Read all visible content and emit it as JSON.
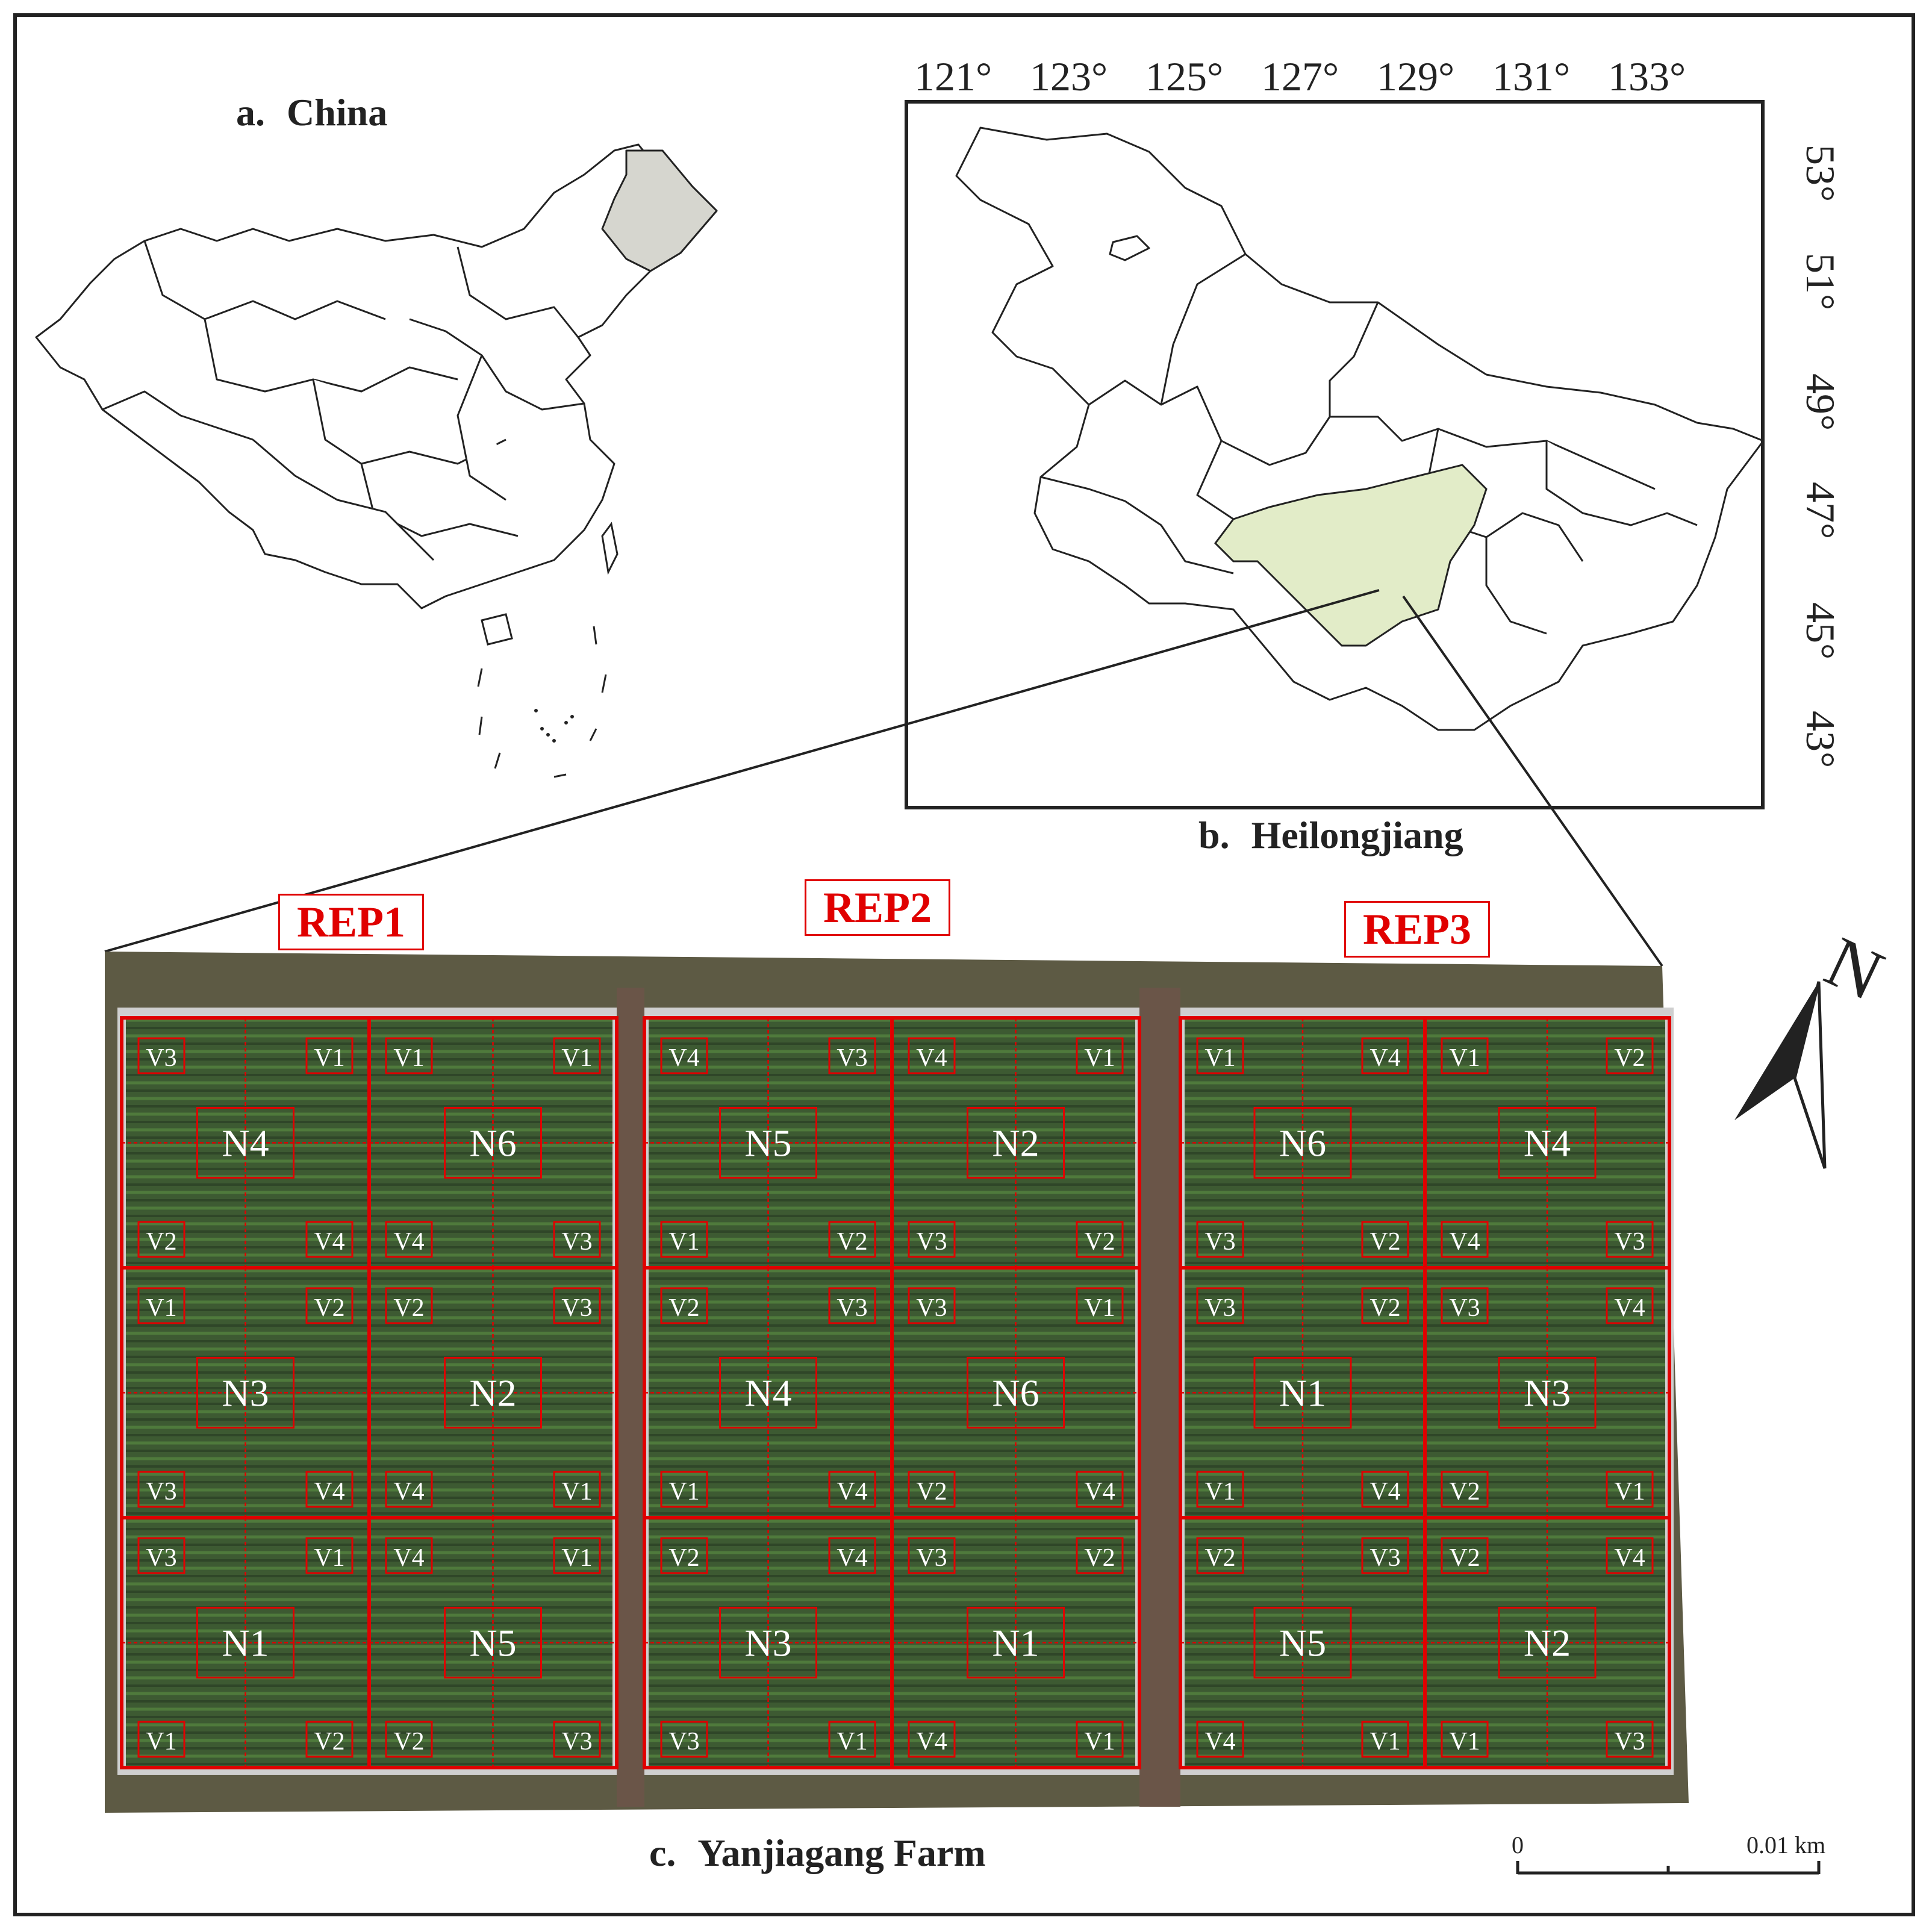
{
  "panels": {
    "china": {
      "letter": "a.",
      "name": "China"
    },
    "heilongjiang": {
      "letter": "b.",
      "name": "Heilongjiang"
    },
    "farm": {
      "letter": "c.",
      "name": "Yanjiagang Farm"
    }
  },
  "longitude_ticks": [
    "121°",
    "123°",
    "125°",
    "127°",
    "129°",
    "131°",
    "133°"
  ],
  "latitude_ticks": [
    "53°",
    "51°",
    "49°",
    "47°",
    "45°",
    "43°"
  ],
  "reps": [
    "REP1",
    "REP2",
    "REP3"
  ],
  "plots": [
    {
      "rep": "REP1",
      "row": 1,
      "col": 1,
      "n": "N4",
      "tl": "V3",
      "tr": "V1",
      "bl": "V2",
      "br": "V4"
    },
    {
      "rep": "REP1",
      "row": 1,
      "col": 2,
      "n": "N6",
      "tl": "V1",
      "tr": "V1",
      "bl": "V4",
      "br": "V3"
    },
    {
      "rep": "REP1",
      "row": 2,
      "col": 1,
      "n": "N3",
      "tl": "V1",
      "tr": "V2",
      "bl": "V3",
      "br": "V4"
    },
    {
      "rep": "REP1",
      "row": 2,
      "col": 2,
      "n": "N2",
      "tl": "V2",
      "tr": "V3",
      "bl": "V4",
      "br": "V1"
    },
    {
      "rep": "REP1",
      "row": 3,
      "col": 1,
      "n": "N1",
      "tl": "V3",
      "tr": "V1",
      "bl": "V1",
      "br": "V2"
    },
    {
      "rep": "REP1",
      "row": 3,
      "col": 2,
      "n": "N5",
      "tl": "V4",
      "tr": "V1",
      "bl": "V2",
      "br": "V3"
    },
    {
      "rep": "REP2",
      "row": 1,
      "col": 1,
      "n": "N5",
      "tl": "V4",
      "tr": "V3",
      "bl": "V1",
      "br": "V2"
    },
    {
      "rep": "REP2",
      "row": 1,
      "col": 2,
      "n": "N2",
      "tl": "V4",
      "tr": "V1",
      "bl": "V3",
      "br": "V2"
    },
    {
      "rep": "REP2",
      "row": 2,
      "col": 1,
      "n": "N4",
      "tl": "V2",
      "tr": "V3",
      "bl": "V1",
      "br": "V4"
    },
    {
      "rep": "REP2",
      "row": 2,
      "col": 2,
      "n": "N6",
      "tl": "V3",
      "tr": "V1",
      "bl": "V2",
      "br": "V4"
    },
    {
      "rep": "REP2",
      "row": 3,
      "col": 1,
      "n": "N3",
      "tl": "V2",
      "tr": "V4",
      "bl": "V3",
      "br": "V1"
    },
    {
      "rep": "REP2",
      "row": 3,
      "col": 2,
      "n": "N1",
      "tl": "V3",
      "tr": "V2",
      "bl": "V4",
      "br": "V1"
    },
    {
      "rep": "REP3",
      "row": 1,
      "col": 1,
      "n": "N6",
      "tl": "V1",
      "tr": "V4",
      "bl": "V3",
      "br": "V2"
    },
    {
      "rep": "REP3",
      "row": 1,
      "col": 2,
      "n": "N4",
      "tl": "V1",
      "tr": "V2",
      "bl": "V4",
      "br": "V3"
    },
    {
      "rep": "REP3",
      "row": 2,
      "col": 1,
      "n": "N1",
      "tl": "V3",
      "tr": "V2",
      "bl": "V1",
      "br": "V4"
    },
    {
      "rep": "REP3",
      "row": 2,
      "col": 2,
      "n": "N3",
      "tl": "V3",
      "tr": "V4",
      "bl": "V2",
      "br": "V1"
    },
    {
      "rep": "REP3",
      "row": 3,
      "col": 1,
      "n": "N5",
      "tl": "V2",
      "tr": "V3",
      "bl": "V4",
      "br": "V1"
    },
    {
      "rep": "REP3",
      "row": 3,
      "col": 2,
      "n": "N2",
      "tl": "V2",
      "tr": "V4",
      "bl": "V1",
      "br": "V3"
    }
  ],
  "north_label": "N",
  "scale": {
    "start": "0",
    "end": "0.01 km"
  },
  "colors": {
    "grid_red": "#e00000",
    "field_green": "#3d5a32",
    "soil_brown": "#6a5548",
    "heilongjiang_fill": "#d6d6cf",
    "study_area_fill": "#e2ecc8"
  }
}
